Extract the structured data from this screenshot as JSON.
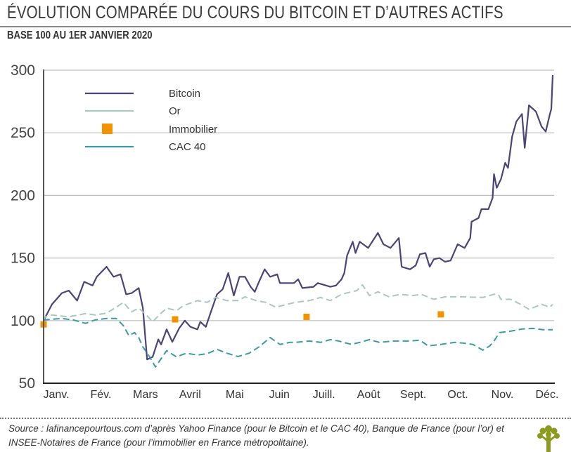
{
  "title": "ÉVOLUTION COMPARÉE DU COURS DU BITCOIN ET D’AUTRES ACTIFS",
  "subtitle": "BASE 100 AU 1ER JANVIER 2020",
  "source": "Source : lafinancepourtous.com d’après Yahoo Finance (pour le Bitcoin et le CAC 40), Banque de France (pour l’or) et INSEE-Notaires de France (pour l’immobilier en France métropolitaine).",
  "logo": "tree-logo",
  "chart_data": {
    "type": "line",
    "title": "ÉVOLUTION COMPARÉE DU COURS DU BITCOIN ET D’AUTRES ACTIFS",
    "subtitle": "BASE 100 AU 1ER JANVIER 2020",
    "xlabel": "",
    "ylabel": "",
    "ylim": [
      50,
      300
    ],
    "yticks": [
      50,
      100,
      150,
      200,
      250,
      300
    ],
    "xlim": [
      "2020-01-01",
      "2020-12-31"
    ],
    "xtick_labels": [
      "Janv.",
      "Fév.",
      "Mars",
      "Avril",
      "Mai",
      "Juin",
      "Juill.",
      "Août",
      "Sept.",
      "Oct.",
      "Nov.",
      "Déc."
    ],
    "grid": "horizontal",
    "legend": "top-left",
    "series": [
      {
        "name": "Bitcoin",
        "color": "#4b4478",
        "style": "solid",
        "x": [
          "2020-01-01",
          "2020-01-07",
          "2020-01-14",
          "2020-01-19",
          "2020-01-25",
          "2020-01-30",
          "2020-02-05",
          "2020-02-08",
          "2020-02-15",
          "2020-02-20",
          "2020-02-25",
          "2020-02-29",
          "2020-03-04",
          "2020-03-09",
          "2020-03-12",
          "2020-03-15",
          "2020-03-19",
          "2020-03-23",
          "2020-03-25",
          "2020-03-29",
          "2020-04-02",
          "2020-04-07",
          "2020-04-11",
          "2020-04-15",
          "2020-04-20",
          "2020-04-22",
          "2020-04-26",
          "2020-04-29",
          "2020-05-04",
          "2020-05-08",
          "2020-05-12",
          "2020-05-16",
          "2020-05-20",
          "2020-05-24",
          "2020-05-28",
          "2020-05-31",
          "2020-06-03",
          "2020-06-07",
          "2020-06-11",
          "2020-06-16",
          "2020-06-18",
          "2020-06-28",
          "2020-07-01",
          "2020-07-04",
          "2020-07-12",
          "2020-07-15",
          "2020-07-24",
          "2020-07-28",
          "2020-08-01",
          "2020-08-03",
          "2020-08-05",
          "2020-08-09",
          "2020-08-11",
          "2020-08-14",
          "2020-08-20",
          "2020-08-27",
          "2020-08-31",
          "2020-09-05",
          "2020-09-11",
          "2020-09-13",
          "2020-09-19",
          "2020-09-23",
          "2020-09-26",
          "2020-09-30",
          "2020-10-03",
          "2020-10-06",
          "2020-10-10",
          "2020-10-14",
          "2020-10-18",
          "2020-10-23",
          "2020-10-28",
          "2020-11-01",
          "2020-11-02",
          "2020-11-07",
          "2020-11-09",
          "2020-11-14",
          "2020-11-17",
          "2020-11-18",
          "2020-11-20",
          "2020-11-23",
          "2020-11-26",
          "2020-11-28",
          "2020-12-01",
          "2020-12-04",
          "2020-12-08",
          "2020-12-10",
          "2020-12-13",
          "2020-12-18",
          "2020-12-22",
          "2020-12-25",
          "2020-12-28",
          "2020-12-29",
          "2020-12-30"
        ],
        "y": [
          100,
          113,
          122,
          124,
          116,
          131,
          128,
          135,
          143,
          135,
          137,
          121,
          122,
          126,
          110,
          69,
          71,
          85,
          81,
          93,
          83,
          94,
          100,
          95,
          93,
          99,
          95,
          105,
          121,
          125,
          138,
          120,
          135,
          135,
          127,
          123,
          131,
          141,
          135,
          137,
          130,
          130,
          133,
          126,
          127,
          130,
          127,
          128,
          133,
          138,
          152,
          163,
          154,
          163,
          158,
          170,
          161,
          158,
          166,
          143,
          141,
          144,
          153,
          154,
          143,
          149,
          150,
          147,
          148,
          161,
          158,
          166,
          179,
          182,
          189,
          189,
          198,
          217,
          206,
          213,
          226,
          222,
          247,
          259,
          265,
          238,
          272,
          267,
          255,
          251,
          265,
          269,
          296
        ]
      },
      {
        "name": "Or",
        "color": "#a8c8c0",
        "style": "dashed",
        "x": [
          "2020-01-01",
          "2020-01-02",
          "2020-01-07",
          "2020-01-19",
          "2020-01-31",
          "2020-02-07",
          "2020-02-15",
          "2020-02-22",
          "2020-02-27",
          "2020-03-01",
          "2020-03-04",
          "2020-03-09",
          "2020-03-14",
          "2020-03-19",
          "2020-03-24",
          "2020-03-29",
          "2020-04-05",
          "2020-04-10",
          "2020-04-20",
          "2020-04-27",
          "2020-05-03",
          "2020-05-11",
          "2020-05-19",
          "2020-05-24",
          "2020-06-01",
          "2020-06-08",
          "2020-06-15",
          "2020-06-23",
          "2020-06-29",
          "2020-07-09",
          "2020-07-17",
          "2020-07-24",
          "2020-08-01",
          "2020-08-08",
          "2020-08-12",
          "2020-08-16",
          "2020-08-21",
          "2020-08-27",
          "2020-09-04",
          "2020-09-12",
          "2020-09-21",
          "2020-09-27",
          "2020-10-06",
          "2020-10-14",
          "2020-10-27",
          "2020-11-10",
          "2020-11-18",
          "2020-11-21",
          "2020-11-23",
          "2020-11-30",
          "2020-12-07",
          "2020-12-13",
          "2020-12-22",
          "2020-12-28",
          "2020-12-30"
        ],
        "y": [
          100,
          103,
          104.5,
          103,
          105.6,
          104.5,
          106,
          110.7,
          114.6,
          110.7,
          107,
          110,
          105,
          99,
          105,
          110,
          108,
          112,
          116,
          114.6,
          118.5,
          116,
          116,
          119,
          116,
          114.6,
          110.7,
          113,
          114.6,
          116,
          118.5,
          116,
          121,
          123,
          124,
          128.6,
          120,
          123,
          119,
          121,
          120,
          121,
          117,
          119,
          119,
          118.5,
          121,
          121,
          117,
          117,
          113,
          109,
          113,
          110.7,
          113
        ]
      },
      {
        "name": "Immobilier",
        "color": "#f39200",
        "style": "markers",
        "x": [
          "2020-01-01",
          "2020-04-04",
          "2020-07-07",
          "2020-10-11"
        ],
        "y": [
          97,
          101,
          103,
          105
        ]
      },
      {
        "name": "CAC 40",
        "color": "#3b9aa6",
        "style": "dashed",
        "x": [
          "2020-01-01",
          "2020-01-02",
          "2020-01-14",
          "2020-01-22",
          "2020-01-31",
          "2020-02-07",
          "2020-02-15",
          "2020-02-22",
          "2020-02-27",
          "2020-03-02",
          "2020-03-06",
          "2020-03-09",
          "2020-03-12",
          "2020-03-16",
          "2020-03-21",
          "2020-03-24",
          "2020-03-29",
          "2020-04-05",
          "2020-04-12",
          "2020-04-20",
          "2020-04-27",
          "2020-05-04",
          "2020-05-11",
          "2020-05-19",
          "2020-05-27",
          "2020-06-03",
          "2020-06-11",
          "2020-06-18",
          "2020-06-25",
          "2020-06-29",
          "2020-07-09",
          "2020-07-17",
          "2020-07-24",
          "2020-07-30",
          "2020-08-08",
          "2020-08-14",
          "2020-08-21",
          "2020-08-28",
          "2020-09-07",
          "2020-09-17",
          "2020-09-26",
          "2020-10-02",
          "2020-10-11",
          "2020-10-21",
          "2020-10-27",
          "2020-11-03",
          "2020-11-10",
          "2020-11-15",
          "2020-11-18",
          "2020-11-22",
          "2020-11-30",
          "2020-12-08",
          "2020-12-16",
          "2020-12-23",
          "2020-12-30"
        ],
        "y": [
          100,
          100.6,
          101.7,
          100.6,
          97.8,
          100.6,
          101.7,
          101.7,
          96,
          88,
          90.4,
          86.5,
          79,
          72.5,
          63,
          68,
          76,
          71,
          74,
          72.5,
          73.6,
          77,
          74,
          71.3,
          74,
          79,
          86.5,
          81,
          82.6,
          82.6,
          83.7,
          82.6,
          84.8,
          83.7,
          81,
          82.6,
          84.8,
          82.6,
          83.7,
          83.7,
          84.3,
          79.8,
          81,
          82.6,
          82,
          81,
          76.4,
          79.8,
          83.7,
          90.4,
          91.6,
          93.3,
          93.8,
          92.7,
          92.7
        ]
      }
    ]
  }
}
